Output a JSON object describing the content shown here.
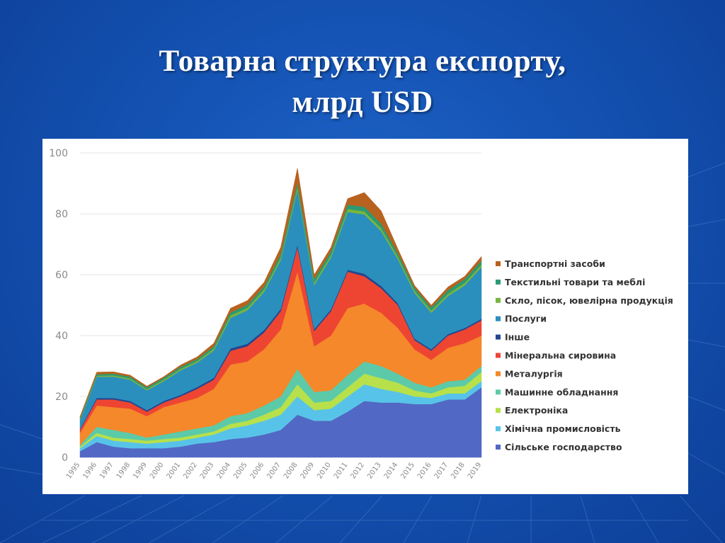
{
  "slide": {
    "title_line1": "Товарна структура експорту,",
    "title_line2": "млрд USD"
  },
  "chart_data": {
    "type": "area",
    "stacked": true,
    "x": [
      "1995",
      "1996",
      "1997",
      "1998",
      "1999",
      "2000",
      "2001",
      "2002",
      "2003",
      "2004",
      "2005",
      "2006",
      "2007",
      "2008",
      "2009",
      "2010",
      "2011",
      "2012",
      "2013",
      "2014",
      "2015",
      "2016",
      "2017",
      "2018",
      "2019"
    ],
    "ylim": [
      0,
      100
    ],
    "yticks": [
      0,
      20,
      40,
      60,
      80,
      100
    ],
    "grid": true,
    "legend_position": "right",
    "series": [
      {
        "name": "Сільське господарство",
        "color": "#5168c4",
        "values": [
          2,
          5,
          3.5,
          3,
          3,
          3,
          3.5,
          4.5,
          5,
          6,
          6.5,
          7.5,
          9,
          14,
          12,
          12,
          15,
          18.5,
          18,
          18,
          17.5,
          17.5,
          19,
          19,
          23
        ]
      },
      {
        "name": "Хімічна промисловість",
        "color": "#58c3e8",
        "values": [
          1,
          2,
          2,
          2,
          1.5,
          2,
          2,
          2,
          2.5,
          3.5,
          4,
          4.5,
          5,
          6,
          3.5,
          4,
          5,
          5.5,
          4.5,
          3.5,
          2.5,
          2,
          2,
          2,
          2
        ]
      },
      {
        "name": "Електроніка",
        "color": "#b7e04a",
        "values": [
          0.5,
          1,
          1,
          1,
          1,
          1,
          1,
          1,
          1,
          1.5,
          1.5,
          2,
          2.5,
          4,
          2.5,
          2.5,
          3,
          3.5,
          3.5,
          3,
          2,
          1.5,
          2,
          2.5,
          3
        ]
      },
      {
        "name": "Машинне обладнання",
        "color": "#5ccaa8",
        "values": [
          0.5,
          2,
          2.5,
          2,
          1,
          1.5,
          2,
          2,
          2,
          2.5,
          2.5,
          3,
          3.5,
          5,
          3.5,
          3.5,
          4,
          4,
          4,
          3,
          2.5,
          2,
          2,
          2,
          2
        ]
      },
      {
        "name": "Металургія",
        "color": "#f5882a",
        "values": [
          4,
          7,
          7.5,
          8,
          7,
          9,
          9.5,
          10,
          12,
          17,
          17,
          18.5,
          22,
          32,
          15,
          18,
          22,
          19,
          17.5,
          15,
          11,
          9,
          11,
          12,
          10
        ]
      },
      {
        "name": "Мінеральна сировина",
        "color": "#ee4532",
        "values": [
          1,
          2,
          2.5,
          2,
          1.5,
          1.5,
          2,
          3,
          3,
          4.5,
          5,
          5.5,
          6,
          8,
          5,
          8,
          12,
          9,
          8,
          7.5,
          3,
          3,
          4,
          4.5,
          5
        ]
      },
      {
        "name": "Інше",
        "color": "#24468f",
        "values": [
          0.3,
          0.5,
          0.5,
          0.5,
          0.5,
          0.5,
          0.5,
          0.6,
          0.6,
          0.8,
          0.8,
          0.8,
          0.8,
          0.8,
          0.6,
          0.6,
          0.6,
          0.8,
          0.8,
          0.6,
          0.5,
          0.5,
          0.5,
          0.5,
          0.5
        ]
      },
      {
        "name": "Послуги",
        "color": "#2b8fbd",
        "values": [
          3,
          7,
          7,
          7,
          6.5,
          6.5,
          8,
          8,
          9,
          10,
          11,
          12.5,
          16,
          18,
          14.5,
          17,
          19,
          19.5,
          18,
          14.5,
          15,
          12,
          12.5,
          14,
          17
        ]
      },
      {
        "name": "Скло, пісок, ювелірна продукція",
        "color": "#79b53c",
        "values": [
          0.3,
          0.3,
          0.4,
          0.4,
          0.4,
          0.5,
          0.5,
          0.5,
          0.6,
          0.8,
          0.8,
          0.8,
          0.8,
          1,
          0.8,
          0.8,
          1,
          1,
          1,
          0.8,
          0.7,
          0.7,
          0.7,
          0.8,
          0.8
        ]
      },
      {
        "name": "Текстильні товари та меблі",
        "color": "#2b9a71",
        "values": [
          0.3,
          0.5,
          0.6,
          0.6,
          0.6,
          0.6,
          0.7,
          0.7,
          0.8,
          1,
          1,
          1,
          1.2,
          1.5,
          1.2,
          1.2,
          1.4,
          1.5,
          1.5,
          1.2,
          1,
          1,
          1.2,
          1.3,
          1.3
        ]
      },
      {
        "name": "Транспортні засоби",
        "color": "#b8621f",
        "values": [
          0.5,
          0.7,
          0.6,
          0.5,
          0.4,
          0.4,
          0.6,
          0.7,
          1,
          1.4,
          1.4,
          1.4,
          2.2,
          4.7,
          1.4,
          1.4,
          2,
          4.7,
          4.2,
          1.4,
          0.8,
          0.8,
          1.1,
          0.9,
          1.4
        ]
      }
    ]
  }
}
